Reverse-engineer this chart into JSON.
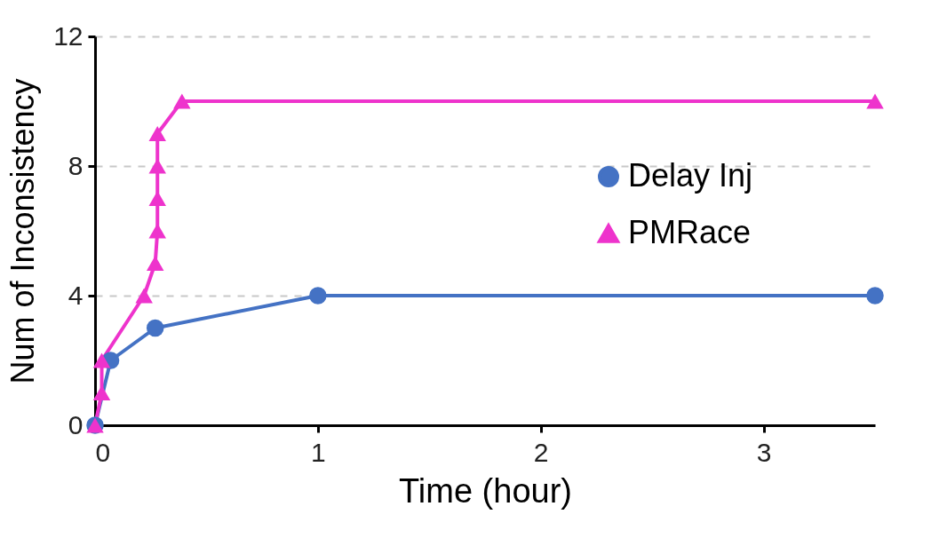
{
  "chart_data": {
    "type": "line",
    "xlabel": "Time (hour)",
    "ylabel": "Num of Inconsistency",
    "xlim": [
      0,
      3.5
    ],
    "xticks": [
      0,
      1,
      2,
      3
    ],
    "ylim": [
      0,
      12
    ],
    "yticks": [
      0,
      4,
      8,
      12
    ],
    "grid": "y",
    "legend": "right",
    "line_style": "solid",
    "series": [
      {
        "name": "Delay Inj",
        "color": "#4472c4",
        "marker": "circle",
        "x": [
          0,
          0.07,
          0.27,
          1,
          3.5
        ],
        "values": [
          0,
          2,
          3,
          4,
          4
        ]
      },
      {
        "name": "PMRace",
        "color": "#ee33cc",
        "marker": "triangle",
        "x": [
          0,
          0.03,
          0.03,
          0.22,
          0.27,
          0.28,
          0.28,
          0.28,
          0.28,
          0.39,
          3.5
        ],
        "values": [
          0,
          1,
          2,
          4,
          5,
          6,
          7,
          8,
          9,
          10,
          10
        ]
      }
    ]
  }
}
